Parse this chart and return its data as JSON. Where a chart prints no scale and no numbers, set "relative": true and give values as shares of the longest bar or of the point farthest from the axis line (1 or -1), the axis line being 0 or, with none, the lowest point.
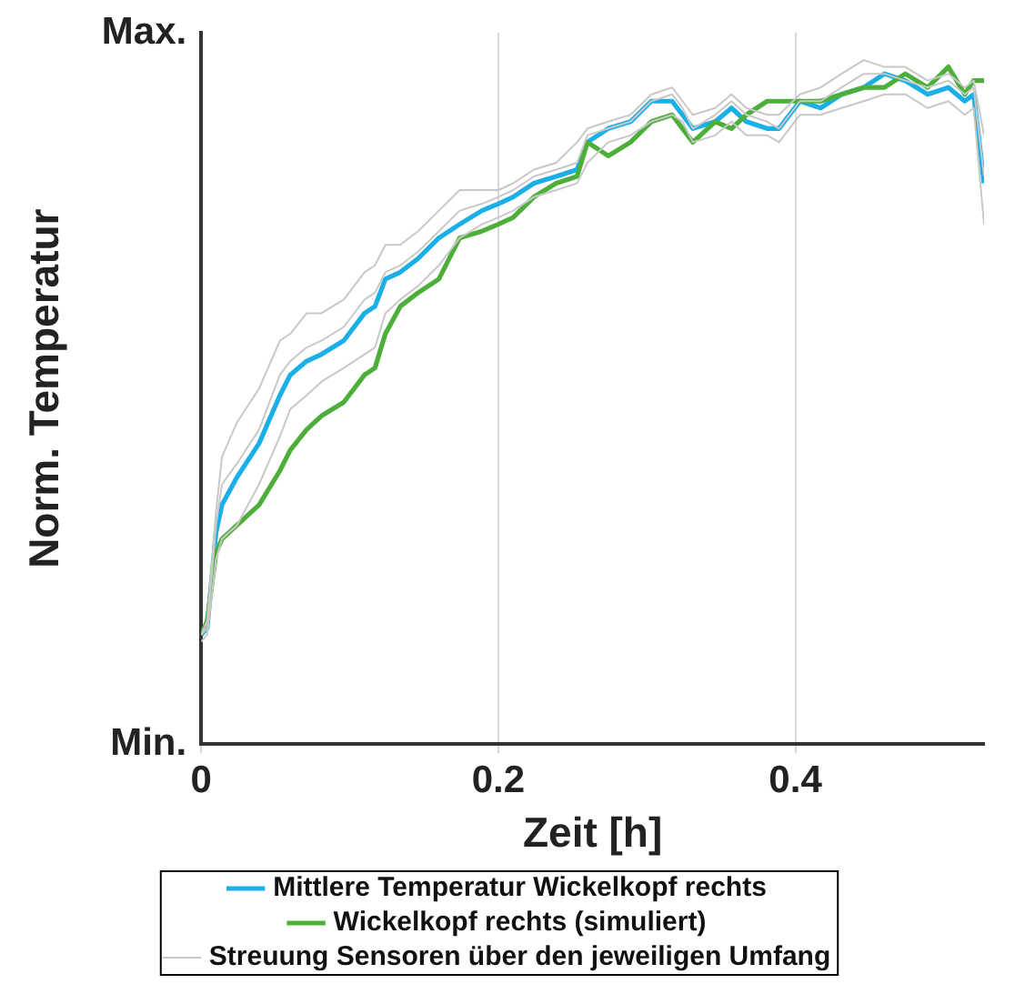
{
  "chart_data": {
    "type": "line",
    "xlabel": "Zeit [h]",
    "ylabel": "Norm. Temperatur",
    "relative": true,
    "annotations": [
      "Min.",
      "Max."
    ],
    "x": [
      0,
      0.004,
      0.01,
      0.014,
      0.024,
      0.039,
      0.053,
      0.06,
      0.071,
      0.081,
      0.096,
      0.11,
      0.117,
      0.124,
      0.134,
      0.146,
      0.16,
      0.174,
      0.189,
      0.2,
      0.21,
      0.224,
      0.239,
      0.253,
      0.26,
      0.274,
      0.289,
      0.303,
      0.317,
      0.324,
      0.331,
      0.346,
      0.357,
      0.367,
      0.381,
      0.389,
      0.403,
      0.417,
      0.431,
      0.446,
      0.46,
      0.474,
      0.489,
      0.503,
      0.514,
      0.52,
      0.527
    ],
    "series": [
      {
        "name": "Streuung Sensoren über den jeweiligen Umfang",
        "color": "#c8c8c8",
        "values": [
          0.16,
          0.18,
          0.34,
          0.42,
          0.47,
          0.52,
          0.59,
          0.6,
          0.63,
          0.63,
          0.65,
          0.69,
          0.7,
          0.73,
          0.73,
          0.75,
          0.78,
          0.81,
          0.81,
          0.81,
          0.82,
          0.84,
          0.85,
          0.88,
          0.9,
          0.91,
          0.92,
          0.95,
          0.96,
          0.94,
          0.92,
          0.93,
          0.95,
          0.93,
          0.92,
          0.92,
          0.95,
          0.96,
          0.98,
          1,
          0.99,
          0.99,
          0.97,
          0.98,
          0.96,
          0.97,
          0.89
        ]
      },
      {
        "color": "#c8c8c8",
        "values": [
          0.15,
          0.16,
          0.27,
          0.3,
          0.32,
          0.38,
          0.45,
          0.49,
          0.51,
          0.53,
          0.55,
          0.57,
          0.58,
          0.63,
          0.65,
          0.67,
          0.7,
          0.74,
          0.76,
          0.77,
          0.78,
          0.8,
          0.81,
          0.82,
          0.85,
          0.88,
          0.89,
          0.91,
          0.92,
          0.91,
          0.88,
          0.89,
          0.91,
          0.89,
          0.89,
          0.88,
          0.92,
          0.92,
          0.93,
          0.94,
          0.95,
          0.95,
          0.93,
          0.94,
          0.92,
          0.93,
          0.76
        ]
      },
      {
        "color": "#c8c8c8",
        "values": [
          0.16,
          0.17,
          0.32,
          0.38,
          0.41,
          0.46,
          0.54,
          0.56,
          0.58,
          0.59,
          0.61,
          0.65,
          0.66,
          0.69,
          0.7,
          0.72,
          0.75,
          0.78,
          0.79,
          0.8,
          0.81,
          0.83,
          0.84,
          0.85,
          0.89,
          0.9,
          0.91,
          0.94,
          0.95,
          0.93,
          0.9,
          0.92,
          0.94,
          0.92,
          0.91,
          0.9,
          0.94,
          0.94,
          0.96,
          0.98,
          0.98,
          0.97,
          0.96,
          0.97,
          0.95,
          0.96,
          0.83
        ]
      },
      {
        "name": "Wickelkopf rechts (simuliert)",
        "color": "#4daf3a",
        "values": [
          0.16,
          0.18,
          0.28,
          0.3,
          0.32,
          0.35,
          0.4,
          0.43,
          0.46,
          0.48,
          0.5,
          0.54,
          0.55,
          0.6,
          0.64,
          0.66,
          0.68,
          0.74,
          0.75,
          0.76,
          0.77,
          0.8,
          0.82,
          0.83,
          0.88,
          0.86,
          0.88,
          0.91,
          0.92,
          0.9,
          0.88,
          0.91,
          0.9,
          0.92,
          0.94,
          0.94,
          0.94,
          0.94,
          0.95,
          0.96,
          0.96,
          0.98,
          0.96,
          0.99,
          0.95,
          0.97,
          0.97
        ]
      },
      {
        "name": "Mittlere Temperatur Wickelkopf rechts",
        "color": "#1aafe6",
        "values": [
          0.16,
          0.17,
          0.31,
          0.35,
          0.39,
          0.44,
          0.51,
          0.54,
          0.56,
          0.57,
          0.59,
          0.63,
          0.64,
          0.68,
          0.69,
          0.71,
          0.74,
          0.76,
          0.78,
          0.79,
          0.8,
          0.82,
          0.83,
          0.84,
          0.88,
          0.9,
          0.91,
          0.94,
          0.94,
          0.92,
          0.9,
          0.91,
          0.93,
          0.91,
          0.9,
          0.9,
          0.94,
          0.93,
          0.95,
          0.96,
          0.98,
          0.97,
          0.95,
          0.96,
          0.94,
          0.95,
          0.82
        ]
      }
    ],
    "xlim": [
      0,
      0.527
    ],
    "xticks": [
      0,
      0.2,
      0.4
    ],
    "grid": "x",
    "legend": "bottom",
    "marker": "none",
    "line_style": "solid"
  }
}
